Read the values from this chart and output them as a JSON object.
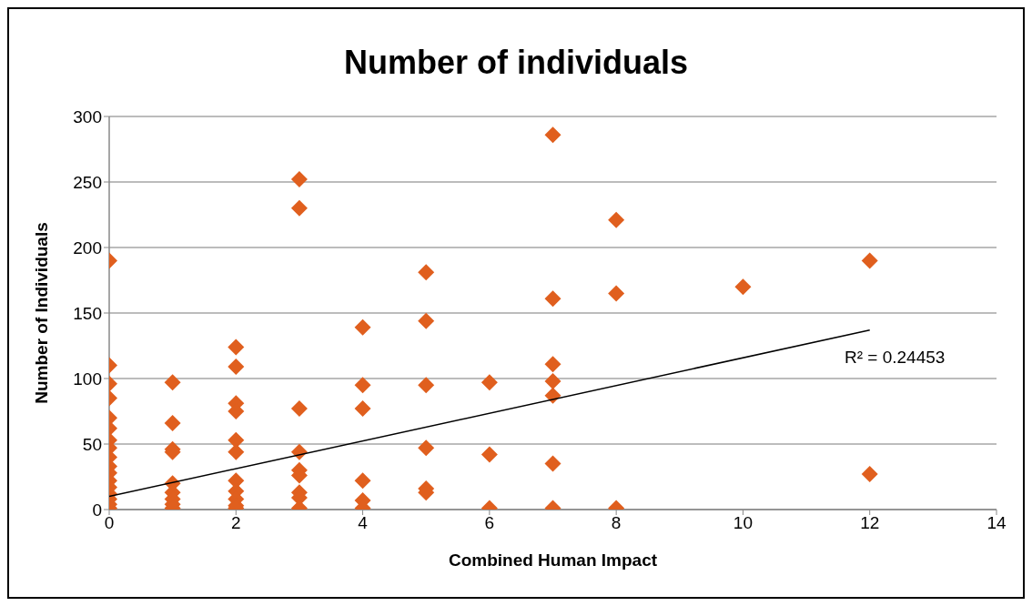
{
  "chart_data": {
    "type": "scatter",
    "title": "Number of individuals",
    "xlabel": "Combined Human Impact",
    "ylabel": "Number of Individuals",
    "xlim": [
      0,
      14
    ],
    "xticks": [
      0,
      2,
      4,
      6,
      8,
      10,
      12,
      14
    ],
    "ylim": [
      0,
      300
    ],
    "yticks": [
      0,
      50,
      100,
      150,
      200,
      250,
      300
    ],
    "grid": "y",
    "series": [
      {
        "marker": "diamond",
        "color": "#e05f1e",
        "x": [
          0,
          0,
          0,
          0,
          0,
          0,
          0,
          0,
          0,
          0,
          0,
          0,
          0,
          0,
          0,
          0,
          0,
          1,
          1,
          1,
          1,
          1,
          1,
          1,
          1,
          1,
          2,
          2,
          2,
          2,
          2,
          2,
          2,
          2,
          2,
          2,
          2,
          3,
          3,
          3,
          3,
          3,
          3,
          3,
          3,
          3,
          4,
          4,
          4,
          4,
          4,
          4,
          5,
          5,
          5,
          5,
          5,
          5,
          6,
          6,
          6,
          7,
          7,
          7,
          7,
          7,
          7,
          7,
          8,
          8,
          8,
          10,
          12,
          12
        ],
        "values": [
          190,
          110,
          96,
          85,
          70,
          62,
          53,
          47,
          40,
          33,
          28,
          22,
          17,
          12,
          8,
          4,
          1,
          97,
          66,
          46,
          44,
          20,
          13,
          8,
          4,
          1,
          124,
          109,
          81,
          75,
          53,
          44,
          22,
          14,
          8,
          3,
          1,
          252,
          230,
          77,
          44,
          30,
          26,
          13,
          9,
          1,
          139,
          95,
          77,
          22,
          7,
          1,
          181,
          144,
          95,
          47,
          16,
          13,
          97,
          42,
          1,
          286,
          161,
          111,
          98,
          87,
          35,
          1,
          221,
          165,
          1,
          170,
          190,
          27
        ]
      },
      {
        "type": "line",
        "color": "#000000",
        "x": [
          0,
          12
        ],
        "values": [
          10,
          137
        ]
      }
    ],
    "annotations": [
      "R² = 0.24453"
    ]
  }
}
